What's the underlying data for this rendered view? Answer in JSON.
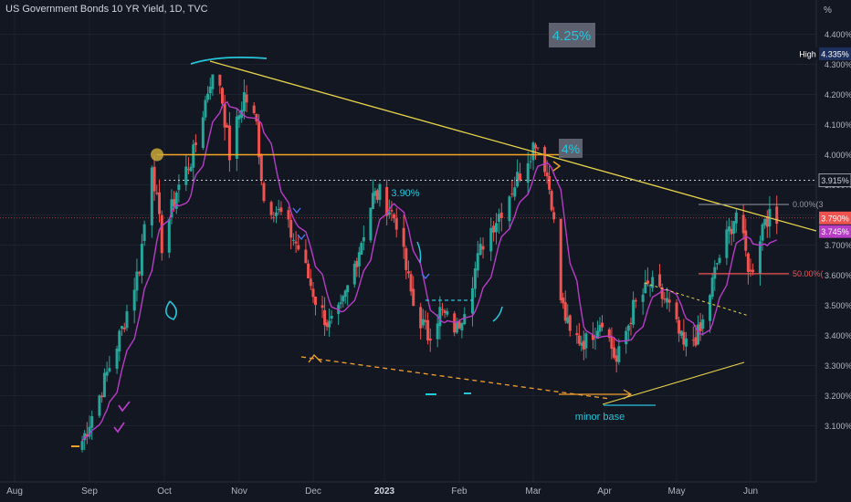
{
  "header": {
    "title": "US Government Bonds 10 YR Yield, 1D, TVC",
    "unit": "%"
  },
  "colors": {
    "background": "#131722",
    "grid": "#1e222d",
    "up_candle": "#26a69a",
    "down_candle": "#ef5350",
    "moving_average": "#b73cc6",
    "trendline": "#e8d44d",
    "horizontal_level": "#f5a623",
    "annotation_cyan": "#26c6da",
    "fib_line": "#ef5350"
  },
  "chart_data": {
    "type": "candlestick",
    "y_axis": {
      "ticks": [
        "4.400%",
        "4.300%",
        "4.200%",
        "4.100%",
        "4.000%",
        "3.900%",
        "3.800%",
        "3.700%",
        "3.600%",
        "3.500%",
        "3.400%",
        "3.300%",
        "3.200%",
        "3.100%"
      ],
      "ylim": [
        3.05,
        4.45
      ]
    },
    "x_axis": {
      "ticks": [
        "Aug",
        "Sep",
        "Oct",
        "Nov",
        "Dec",
        "2023",
        "Feb",
        "Mar",
        "Apr",
        "May",
        "Jun"
      ]
    },
    "price_labels": [
      {
        "tag": "High",
        "value": "4.335%",
        "kind": "high"
      },
      {
        "value": "3.915%",
        "kind": "dotted-level"
      },
      {
        "value": "3.790%",
        "kind": "last-price"
      },
      {
        "value": "3.745%",
        "kind": "moving-average"
      }
    ],
    "annotations": {
      "box_425": "4.25%",
      "box_4": "4%",
      "label_390": "3.90%",
      "minor_base": "minor base",
      "fib_0": "0.00%(3",
      "fib_50": "50.00%("
    },
    "levels": {
      "horizontal_4": 4.0,
      "dotted_3915": 3.915,
      "fib_0_level": 3.835,
      "fib_50_level": 3.605
    },
    "swing_path": [
      [
        "Aug-29",
        3.05
      ],
      [
        "Sep-05",
        3.2
      ],
      [
        "Sep-14",
        3.42
      ],
      [
        "Sep-21",
        3.63
      ],
      [
        "Sep-26",
        3.98
      ],
      [
        "Sep-30",
        3.7
      ],
      [
        "Oct-06",
        3.88
      ],
      [
        "Oct-13",
        4.0
      ],
      [
        "Oct-20",
        4.25
      ],
      [
        "Oct-24",
        4.24
      ],
      [
        "Oct-28",
        4.0
      ],
      [
        "Nov-03",
        4.2
      ],
      [
        "Nov-08",
        4.1
      ],
      [
        "Nov-11",
        3.85
      ],
      [
        "Nov-18",
        3.8
      ],
      [
        "Nov-25",
        3.69
      ],
      [
        "Dec-02",
        3.52
      ],
      [
        "Dec-08",
        3.43
      ],
      [
        "Dec-13",
        3.48
      ],
      [
        "Dec-20",
        3.66
      ],
      [
        "Dec-27",
        3.86
      ],
      [
        "Dec-30",
        3.87
      ],
      [
        "Jan-06",
        3.78
      ],
      [
        "Jan-13",
        3.5
      ],
      [
        "Jan-19",
        3.4
      ],
      [
        "Jan-24",
        3.48
      ],
      [
        "Jan-31",
        3.42
      ],
      [
        "Feb-03",
        3.5
      ],
      [
        "Feb-10",
        3.71
      ],
      [
        "Feb-17",
        3.82
      ],
      [
        "Feb-24",
        3.94
      ],
      [
        "Mar-02",
        4.05
      ],
      [
        "Mar-06",
        3.97
      ],
      [
        "Mar-09",
        3.85
      ],
      [
        "Mar-13",
        3.52
      ],
      [
        "Mar-17",
        3.4
      ],
      [
        "Mar-24",
        3.38
      ],
      [
        "Mar-31",
        3.46
      ],
      [
        "Apr-06",
        3.31
      ],
      [
        "Apr-13",
        3.49
      ],
      [
        "Apr-20",
        3.57
      ],
      [
        "Apr-27",
        3.51
      ],
      [
        "May-04",
        3.36
      ],
      [
        "May-11",
        3.41
      ],
      [
        "May-18",
        3.64
      ],
      [
        "May-26",
        3.81
      ],
      [
        "Jun-01",
        3.6
      ],
      [
        "Jun-07",
        3.8
      ],
      [
        "Jun-12",
        3.77
      ]
    ]
  }
}
